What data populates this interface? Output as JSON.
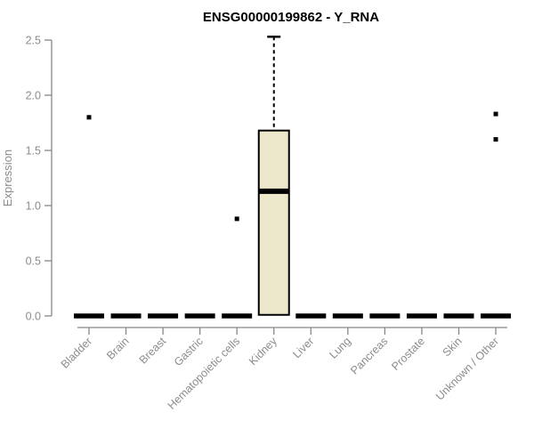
{
  "figure": {
    "title": "ENSG00000199862 - Y_RNA",
    "ylabel": "Expression"
  },
  "colors": {
    "background": "#FFFFFF",
    "title": "#000000",
    "axis": "#878787",
    "tick_label": "#8C8C8C",
    "box_fill": "#EDE7CB",
    "box_border": "#000000",
    "median": "#000000",
    "outlier": "#000000"
  },
  "chart_data": {
    "type": "boxplot",
    "title": "ENSG00000199862 - Y_RNA",
    "xlabel": "",
    "ylabel": "Expression",
    "ylim": [
      0,
      2.5
    ],
    "yticks": [
      0,
      0.5,
      1,
      1.5,
      2,
      2.5
    ],
    "grid": false,
    "legend": false,
    "categories": [
      "Bladder",
      "Brain",
      "Breast",
      "Gastric",
      "Hematopoietic cells",
      "Kidney",
      "Liver",
      "Lung",
      "Pancreas",
      "Prostate",
      "Skin",
      "Unknown / Other"
    ],
    "boxes": [
      {
        "category": "Bladder",
        "q1": 0,
        "median": 0,
        "q3": 0,
        "whisker_low": 0,
        "whisker_high": 0,
        "outliers": [
          1.8
        ]
      },
      {
        "category": "Brain",
        "q1": 0,
        "median": 0,
        "q3": 0,
        "whisker_low": 0,
        "whisker_high": 0,
        "outliers": []
      },
      {
        "category": "Breast",
        "q1": 0,
        "median": 0,
        "q3": 0,
        "whisker_low": 0,
        "whisker_high": 0,
        "outliers": []
      },
      {
        "category": "Gastric",
        "q1": 0,
        "median": 0,
        "q3": 0,
        "whisker_low": 0,
        "whisker_high": 0,
        "outliers": []
      },
      {
        "category": "Hematopoietic cells",
        "q1": 0,
        "median": 0,
        "q3": 0,
        "whisker_low": 0,
        "whisker_high": 0,
        "outliers": [
          0.88
        ]
      },
      {
        "category": "Kidney",
        "q1": 0.01,
        "median": 1.13,
        "q3": 1.68,
        "whisker_low": 0.01,
        "whisker_high": 2.53,
        "outliers": []
      },
      {
        "category": "Liver",
        "q1": 0,
        "median": 0,
        "q3": 0,
        "whisker_low": 0,
        "whisker_high": 0,
        "outliers": []
      },
      {
        "category": "Lung",
        "q1": 0,
        "median": 0,
        "q3": 0,
        "whisker_low": 0,
        "whisker_high": 0,
        "outliers": []
      },
      {
        "category": "Pancreas",
        "q1": 0,
        "median": 0,
        "q3": 0,
        "whisker_low": 0,
        "whisker_high": 0,
        "outliers": []
      },
      {
        "category": "Prostate",
        "q1": 0,
        "median": 0,
        "q3": 0,
        "whisker_low": 0,
        "whisker_high": 0,
        "outliers": []
      },
      {
        "category": "Skin",
        "q1": 0,
        "median": 0,
        "q3": 0,
        "whisker_low": 0,
        "whisker_high": 0,
        "outliers": []
      },
      {
        "category": "Unknown / Other",
        "q1": 0,
        "median": 0,
        "q3": 0,
        "whisker_low": 0,
        "whisker_high": 0,
        "outliers": [
          1.83,
          1.6
        ]
      }
    ]
  }
}
